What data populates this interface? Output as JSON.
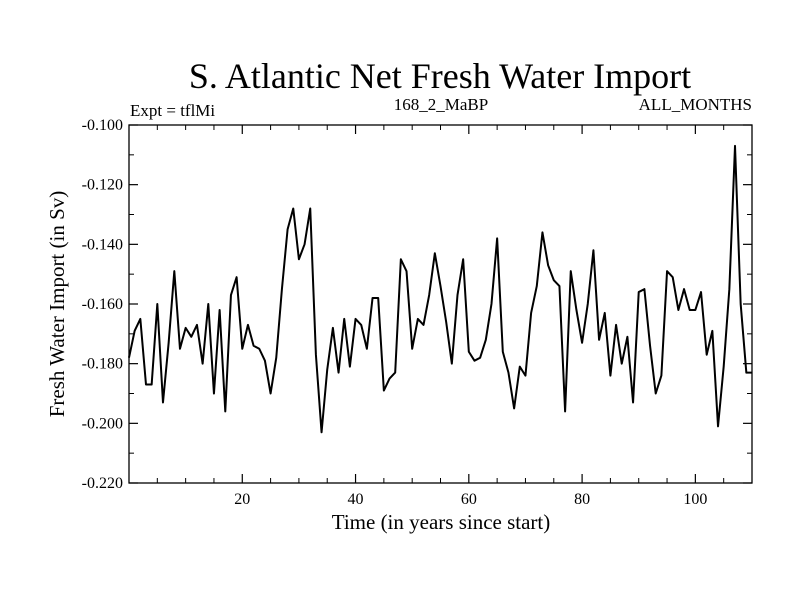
{
  "chart_data": {
    "type": "line",
    "title": "S. Atlantic Net Fresh Water Import",
    "subtitle_left": "Expt = tflMi",
    "subtitle_center": "168_2_MaBP",
    "subtitle_right": "ALL_MONTHS",
    "xlabel": "Time (in years since start)",
    "ylabel": "Fresh Water Import (in Sv)",
    "xlim": [
      0,
      110
    ],
    "ylim": [
      -0.22,
      -0.1
    ],
    "xticks": [
      20,
      40,
      60,
      80,
      100
    ],
    "xtick_labels": [
      "20",
      "40",
      "60",
      "80",
      "100"
    ],
    "yticks": [
      -0.1,
      -0.12,
      -0.14,
      -0.16,
      -0.18,
      -0.2,
      -0.22
    ],
    "ytick_labels": [
      "-0.100",
      "-0.120",
      "-0.140",
      "-0.160",
      "-0.180",
      "-0.200",
      "-0.220"
    ],
    "series": [
      {
        "name": "Fresh water import",
        "x": [
          0,
          1,
          2,
          3,
          4,
          5,
          6,
          7,
          8,
          9,
          10,
          11,
          12,
          13,
          14,
          15,
          16,
          17,
          18,
          19,
          20,
          21,
          22,
          23,
          24,
          25,
          26,
          27,
          28,
          29,
          30,
          31,
          32,
          33,
          34,
          35,
          36,
          37,
          38,
          39,
          40,
          41,
          42,
          43,
          44,
          45,
          46,
          47,
          48,
          49,
          50,
          51,
          52,
          53,
          54,
          55,
          56,
          57,
          58,
          59,
          60,
          61,
          62,
          63,
          64,
          65,
          66,
          67,
          68,
          69,
          70,
          71,
          72,
          73,
          74,
          75,
          76,
          77,
          78,
          79,
          80,
          81,
          82,
          83,
          84,
          85,
          86,
          87,
          88,
          89,
          90,
          91,
          92,
          93,
          94,
          95,
          96,
          97,
          98,
          99,
          100,
          101,
          102,
          103,
          104,
          105,
          106,
          107,
          108,
          109,
          110
        ],
        "values": [
          -0.178,
          -0.169,
          -0.165,
          -0.187,
          -0.187,
          -0.16,
          -0.193,
          -0.173,
          -0.149,
          -0.175,
          -0.168,
          -0.171,
          -0.167,
          -0.18,
          -0.16,
          -0.19,
          -0.162,
          -0.196,
          -0.157,
          -0.151,
          -0.175,
          -0.167,
          -0.174,
          -0.175,
          -0.179,
          -0.19,
          -0.178,
          -0.155,
          -0.135,
          -0.128,
          -0.145,
          -0.14,
          -0.128,
          -0.177,
          -0.203,
          -0.182,
          -0.168,
          -0.183,
          -0.165,
          -0.181,
          -0.165,
          -0.167,
          -0.175,
          -0.158,
          -0.158,
          -0.189,
          -0.185,
          -0.183,
          -0.145,
          -0.149,
          -0.175,
          -0.165,
          -0.167,
          -0.157,
          -0.143,
          -0.154,
          -0.166,
          -0.18,
          -0.157,
          -0.145,
          -0.176,
          -0.179,
          -0.178,
          -0.172,
          -0.16,
          -0.138,
          -0.176,
          -0.183,
          -0.195,
          -0.181,
          -0.184,
          -0.163,
          -0.154,
          -0.136,
          -0.147,
          -0.152,
          -0.154,
          -0.196,
          -0.149,
          -0.162,
          -0.173,
          -0.16,
          -0.142,
          -0.172,
          -0.163,
          -0.184,
          -0.167,
          -0.18,
          -0.171,
          -0.193,
          -0.156,
          -0.155,
          -0.174,
          -0.19,
          -0.184,
          -0.149,
          -0.151,
          -0.162,
          -0.155,
          -0.162,
          -0.162,
          -0.156,
          -0.177,
          -0.169,
          -0.201,
          -0.181,
          -0.155,
          -0.107,
          -0.16,
          -0.183,
          -0.183
        ]
      }
    ]
  }
}
